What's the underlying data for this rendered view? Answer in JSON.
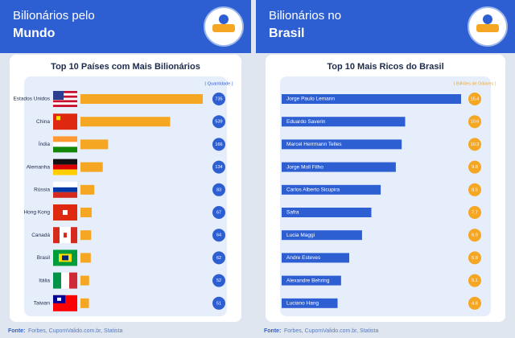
{
  "chart_data": [
    {
      "type": "hbar",
      "panel_title": [
        "Bilionários pelo",
        "Mundo"
      ],
      "title": "Top 10 Países com Mais Bilionários",
      "legend_label": "( Quantidade )",
      "categories": [
        "Estados Unidos",
        "China",
        "Índia",
        "Alemanha",
        "Rússia",
        "Hong Kong",
        "Canadá",
        "Brasil",
        "Itália",
        "Taiwan"
      ],
      "values": [
        735,
        539,
        166,
        134,
        83,
        67,
        64,
        62,
        52,
        51
      ],
      "color": "#f5a623",
      "label_color": "#2d5fd3",
      "source_label": "Fonte:",
      "source": "Forbes, CupomValido.com.br, Statista"
    },
    {
      "type": "hbar-named",
      "panel_title": [
        "Bilionários no",
        "Brasil"
      ],
      "title": "Top 10 Mais Ricos do Brasil",
      "legend_label": "( Bilhões de Dólares )",
      "categories": [
        "Jorge Paulo Lemann",
        "Eduardo Saverin",
        "Marcel Herrmann Telles",
        "Jorge Moll Filho",
        "Carlos Alberto Sicupira",
        "Safra",
        "Lucia Maggi",
        "Andre Esteves",
        "Alexandre Behring",
        "Luciano Hang"
      ],
      "values": [
        15.4,
        10.6,
        10.3,
        9.8,
        8.5,
        7.7,
        6.9,
        5.8,
        5.1,
        4.8
      ],
      "color": "#2d5fd3",
      "label_color": "#f5a623",
      "source_label": "Fonte:",
      "source": "Forbes, CupomValido.com.br, Statista"
    }
  ]
}
